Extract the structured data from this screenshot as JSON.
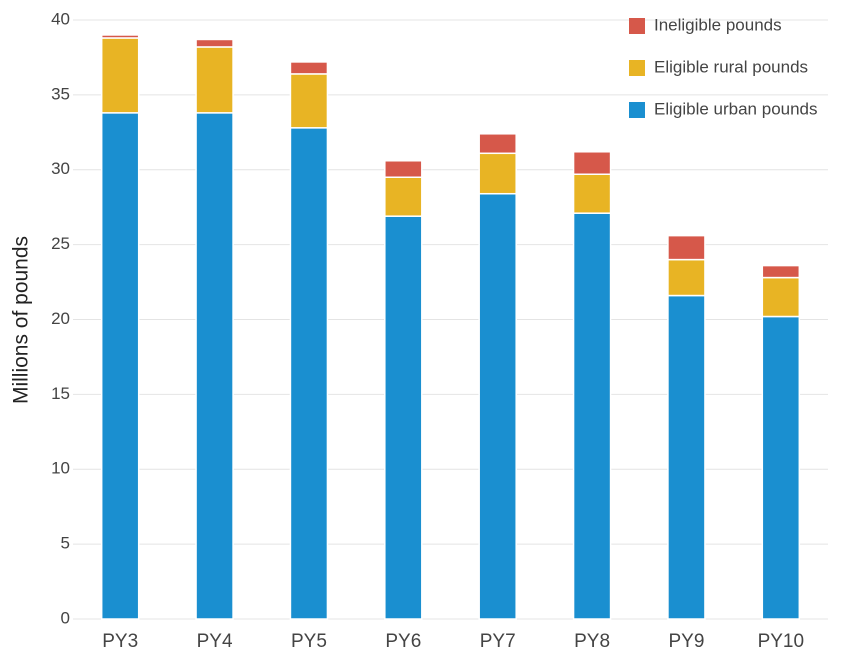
{
  "chart_data": {
    "type": "stacked_bar",
    "y_label": "Millions of pounds",
    "categories": [
      "PY3",
      "PY4",
      "PY5",
      "PY6",
      "PY7",
      "PY8",
      "PY9",
      "PY10"
    ],
    "series": [
      {
        "name": "Eligible urban pounds",
        "color": "#1a8fd0",
        "values": [
          33.8,
          33.8,
          32.8,
          26.9,
          28.4,
          27.1,
          21.6,
          20.2
        ]
      },
      {
        "name": "Eligible rural pounds",
        "color": "#e8b424",
        "values": [
          5.0,
          4.4,
          3.6,
          2.6,
          2.7,
          2.6,
          2.4,
          2.6
        ]
      },
      {
        "name": "Ineligible pounds",
        "color": "#d6584a",
        "values": [
          0.2,
          0.5,
          0.8,
          1.1,
          1.3,
          1.5,
          1.6,
          0.8
        ]
      }
    ],
    "ylim": [
      0,
      40
    ],
    "yticks": [
      0,
      5,
      10,
      15,
      20,
      25,
      30,
      35,
      40
    ],
    "grid": true,
    "legend": "top-right"
  }
}
